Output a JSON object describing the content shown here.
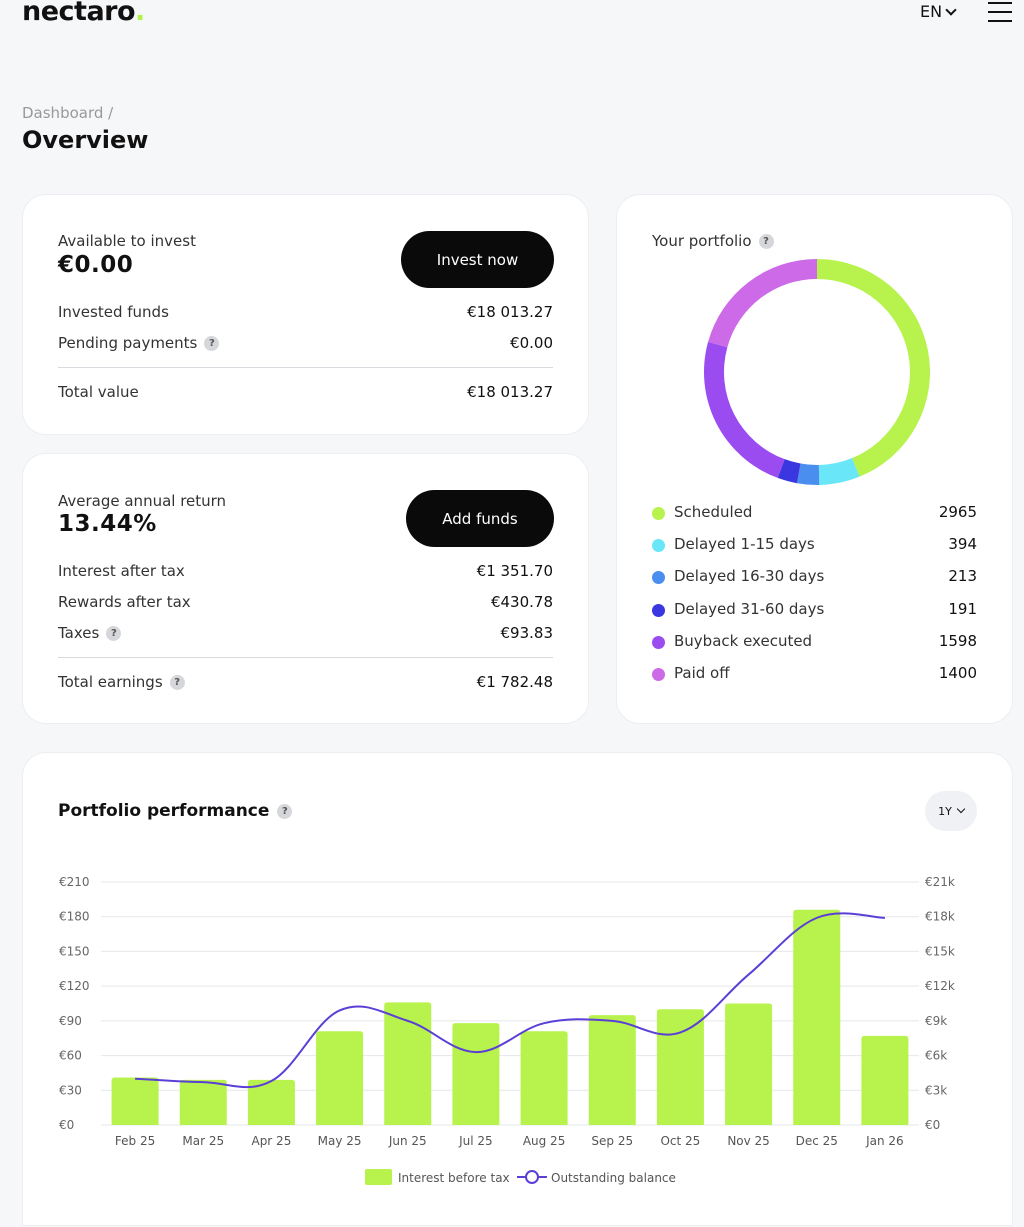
{
  "header": {
    "logo_text": "nectaro",
    "logo_dot": ".",
    "language": "EN"
  },
  "breadcrumb": "Dashboard /",
  "page_title": "Overview",
  "invest_card": {
    "available_label": "Available to invest",
    "available_value": "€0.00",
    "button_label": "Invest now",
    "rows": [
      {
        "label": "Invested funds",
        "value": "€18 013.27",
        "help": false
      },
      {
        "label": "Pending payments",
        "value": "€0.00",
        "help": true
      }
    ],
    "total_label": "Total value",
    "total_value": "€18 013.27"
  },
  "return_card": {
    "avg_label": "Average annual return",
    "avg_value": "13.44%",
    "button_label": "Add funds",
    "rows": [
      {
        "label": "Interest after tax",
        "value": "€1 351.70",
        "help": false
      },
      {
        "label": "Rewards after tax",
        "value": "€430.78",
        "help": false
      },
      {
        "label": "Taxes",
        "value": "€93.83",
        "help": true
      }
    ],
    "total_label": "Total earnings",
    "total_value": "€1 782.48"
  },
  "portfolio": {
    "title": "Your portfolio",
    "items": [
      {
        "label": "Scheduled",
        "count": "2965",
        "value": 2965,
        "color": "#b7f34c"
      },
      {
        "label": "Delayed 1-15 days",
        "count": "394",
        "value": 394,
        "color": "#69e6f7"
      },
      {
        "label": "Delayed 16-30 days",
        "count": "213",
        "value": 213,
        "color": "#4a8ef0"
      },
      {
        "label": "Delayed 31-60 days",
        "count": "191",
        "value": 191,
        "color": "#3a36e0"
      },
      {
        "label": "Buyback executed",
        "count": "1598",
        "value": 1598,
        "color": "#9b4cf0"
      },
      {
        "label": "Paid off",
        "count": "1400",
        "value": 1400,
        "color": "#cd6ae8"
      }
    ]
  },
  "performance": {
    "title": "Portfolio performance",
    "range_label": "1Y",
    "legend": {
      "bars": "Interest before tax",
      "line": "Outstanding balance"
    },
    "colors": {
      "bars": "#b7f34c",
      "line": "#5b3fd6"
    }
  },
  "chart_data": {
    "type": "bar",
    "title": "Portfolio performance",
    "categories": [
      "Feb 25",
      "Mar 25",
      "Apr 25",
      "May 25",
      "Jun 25",
      "Jul 25",
      "Aug 25",
      "Sep 25",
      "Oct 25",
      "Nov 25",
      "Dec 25",
      "Jan 26"
    ],
    "y_ticks": [
      "€0",
      "€30",
      "€60",
      "€90",
      "€120",
      "€150",
      "€180",
      "€210"
    ],
    "y2_ticks": [
      "€0",
      "€3k",
      "€6k",
      "€9k",
      "€12k",
      "€15k",
      "€18k",
      "€21k"
    ],
    "ylim": [
      0,
      210
    ],
    "y2lim": [
      0,
      21000
    ],
    "series": [
      {
        "name": "Interest before tax",
        "type": "bar",
        "axis": "left",
        "values": [
          41,
          39,
          39,
          81,
          106,
          88,
          81,
          95,
          100,
          105,
          186,
          77
        ]
      },
      {
        "name": "Outstanding balance",
        "type": "line",
        "axis": "right",
        "values": [
          4000,
          3700,
          3800,
          9900,
          9000,
          6300,
          8800,
          9000,
          8000,
          13000,
          17900,
          17900
        ]
      }
    ]
  }
}
